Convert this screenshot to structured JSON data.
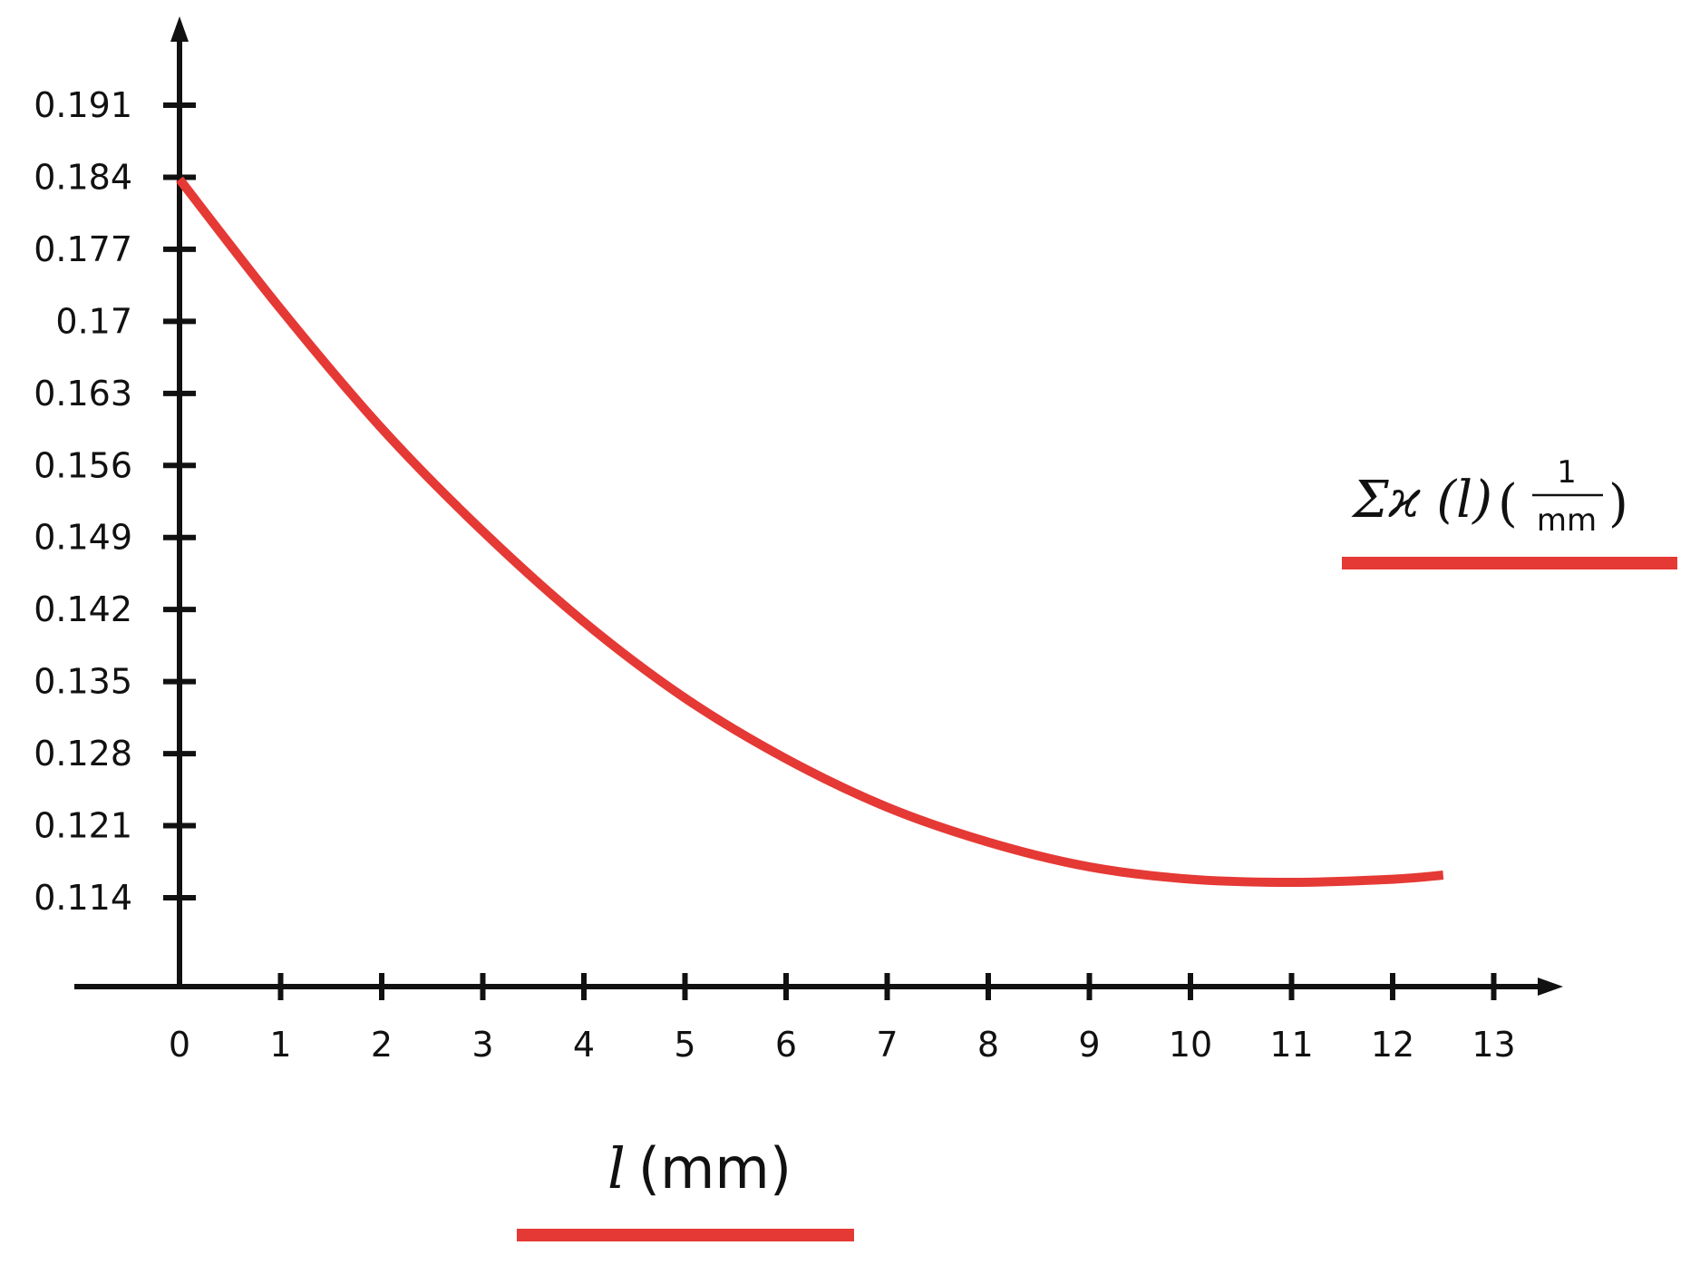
{
  "chart_data": {
    "type": "line",
    "title": "",
    "xlabel": "l (mm)",
    "xlabel_var": "l",
    "xlabel_unit": "(mm)",
    "ylabel": "",
    "xlim": [
      0,
      13
    ],
    "ylim": [
      0.114,
      0.191
    ],
    "x_ticks": [
      0,
      1,
      2,
      3,
      4,
      5,
      6,
      7,
      8,
      9,
      10,
      11,
      12,
      13
    ],
    "x_tick_labels": [
      "0",
      "1",
      "2",
      "3",
      "4",
      "5",
      "6",
      "7",
      "8",
      "9",
      "10",
      "11",
      "12",
      "13"
    ],
    "y_ticks": [
      0.191,
      0.184,
      0.177,
      0.17,
      0.163,
      0.156,
      0.149,
      0.142,
      0.135,
      0.128,
      0.121,
      0.114
    ],
    "y_tick_labels": [
      "0.191",
      "0.184",
      "0.177",
      "0.17",
      "0.163",
      "0.156",
      "0.149",
      "0.142",
      "0.135",
      "0.128",
      "0.121",
      "0.114"
    ],
    "grid": false,
    "legend_position": "right",
    "series": [
      {
        "legend_main": "Σϰ (l)",
        "legend_frac_num": "1",
        "legend_frac_den": "mm",
        "color": "#e53935",
        "x": [
          0,
          1,
          2,
          3,
          4,
          5,
          6,
          7,
          8,
          9,
          10,
          11,
          12,
          12.5
        ],
        "y": [
          0.1838,
          0.1712,
          0.1596,
          0.1496,
          0.1408,
          0.1334,
          0.1275,
          0.1228,
          0.1194,
          0.117,
          0.1158,
          0.1155,
          0.1158,
          0.1162
        ]
      }
    ]
  }
}
